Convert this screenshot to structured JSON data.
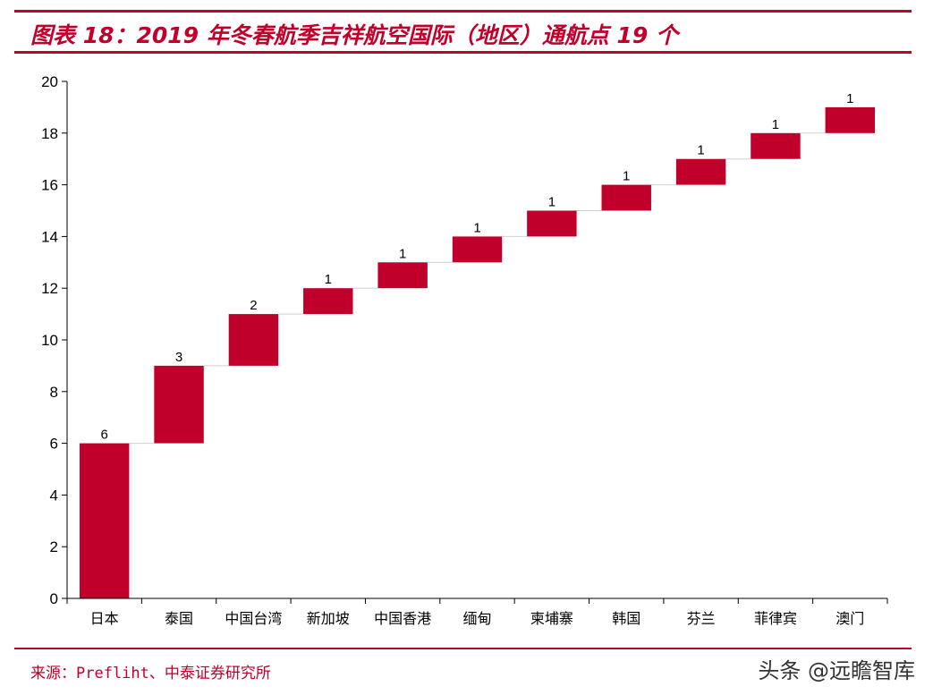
{
  "title": "图表 18：2019 年冬春航季吉祥航空国际（地区）通航点 19 个",
  "source": "来源：Prefliht、中泰证券研究所",
  "watermark": "头条 @远瞻智库",
  "colors": {
    "accent": "#c0002b",
    "bar": "#c0002b",
    "connector": "#d0d0d0",
    "axis": "#000000"
  },
  "chart_data": {
    "type": "bar",
    "subtype": "waterfall",
    "categories": [
      "日本",
      "泰国",
      "中国台湾",
      "新加坡",
      "中国香港",
      "缅甸",
      "柬埔寨",
      "韩国",
      "芬兰",
      "菲律宾",
      "澳门"
    ],
    "values": [
      6,
      3,
      2,
      1,
      1,
      1,
      1,
      1,
      1,
      1,
      1
    ],
    "bases": [
      0,
      6,
      9,
      11,
      12,
      13,
      14,
      15,
      16,
      17,
      18
    ],
    "data_labels": [
      "6",
      "3",
      "2",
      "1",
      "1",
      "1",
      "1",
      "1",
      "1",
      "1",
      "1"
    ],
    "ylim": [
      0,
      20
    ],
    "yticks": [
      0,
      2,
      4,
      6,
      8,
      10,
      12,
      14,
      16,
      18,
      20
    ],
    "ytick_labels": [
      "0",
      "2",
      "4",
      "6",
      "8",
      "10",
      "12",
      "14",
      "16",
      "18",
      "20"
    ],
    "legend": "none",
    "grid": false
  }
}
